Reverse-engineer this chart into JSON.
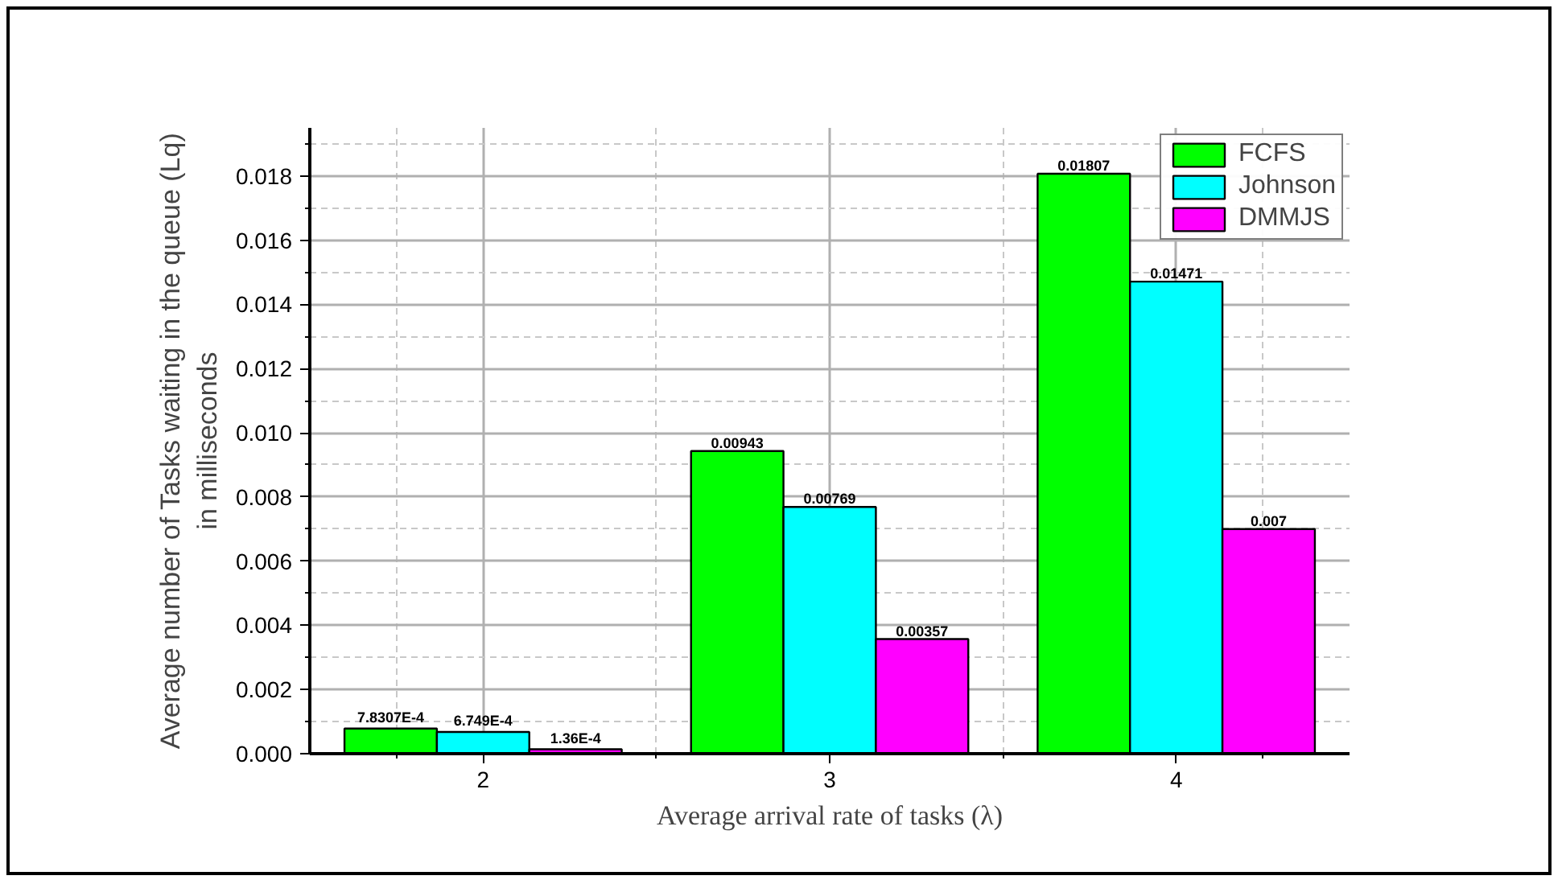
{
  "chart_data": {
    "type": "bar",
    "xlabel": "Average arrival rate of tasks (λ)",
    "ylabel": "Average number of Tasks waiting in the queue (Lq)\nin milliseconds",
    "x": [
      2,
      3,
      4
    ],
    "xlim": [
      1.5,
      4.5
    ],
    "xticks": [
      2,
      3,
      4
    ],
    "ylim": [
      0,
      0.0195
    ],
    "yticks": [
      {
        "value": 0,
        "label": "0.000"
      },
      0.002,
      0.004,
      0.006,
      0.008,
      {
        "value": 0.01,
        "label": "0.010"
      },
      0.012,
      0.014,
      0.016,
      0.018
    ],
    "grid": true,
    "legend": "top right",
    "series": [
      {
        "name": "FCFS",
        "color": "#00ff00",
        "values": [
          0.00078307,
          0.00943,
          0.01807
        ],
        "value_labels": [
          "7.8307E-4",
          "0.00943",
          "0.01807"
        ]
      },
      {
        "name": "Johnson",
        "color": "#00ffff",
        "values": [
          0.0006749,
          0.00769,
          0.01471
        ],
        "value_labels": [
          "6.749E-4",
          "0.00769",
          "0.01471"
        ]
      },
      {
        "name": "DMMJS",
        "color": "#ff00ff",
        "values": [
          0.000136,
          0.00357,
          0.007
        ],
        "value_labels": [
          "1.36E-4",
          "0.00357",
          "0.007"
        ]
      }
    ]
  }
}
